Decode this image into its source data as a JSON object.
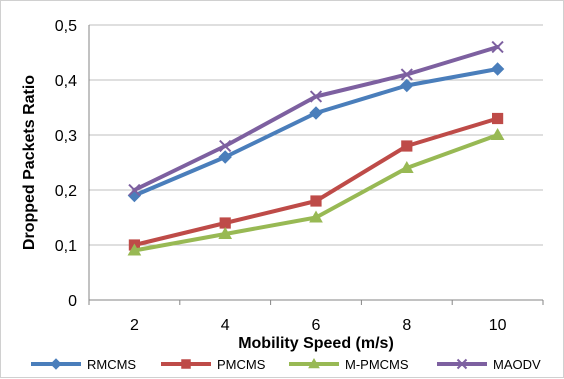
{
  "chart_data": {
    "type": "line",
    "title": "",
    "xlabel": "Mobility Speed (m/s)",
    "ylabel": "Dropped Packets Ratio",
    "categories": [
      "2",
      "4",
      "6",
      "8",
      "10"
    ],
    "ylim": [
      0,
      0.5
    ],
    "yticks": [
      "0",
      "0,1",
      "0,2",
      "0,3",
      "0,4",
      "0,5"
    ],
    "grid": true,
    "legend_position": "bottom",
    "series": [
      {
        "name": "RMCMS",
        "color": "#4A7EBB",
        "marker": "diamond",
        "values": [
          0.19,
          0.26,
          0.34,
          0.39,
          0.42
        ]
      },
      {
        "name": "PMCMS",
        "color": "#BE4B48",
        "marker": "square",
        "values": [
          0.1,
          0.14,
          0.18,
          0.28,
          0.33
        ]
      },
      {
        "name": "M-PMCMS",
        "color": "#98B954",
        "marker": "triangle",
        "values": [
          0.09,
          0.12,
          0.15,
          0.24,
          0.3
        ]
      },
      {
        "name": "MAODV",
        "color": "#7D60A0",
        "marker": "x",
        "values": [
          0.2,
          0.28,
          0.37,
          0.41,
          0.46
        ]
      }
    ]
  }
}
